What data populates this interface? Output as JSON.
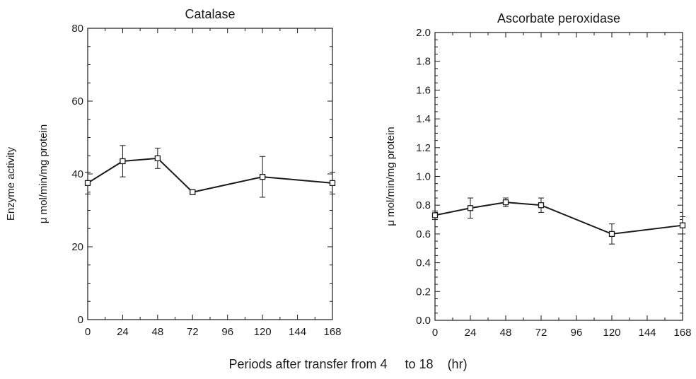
{
  "figure": {
    "shared_ylabel": "Enzyme activity",
    "xlabel": "Periods after transfer from 4     to 18    (hr)"
  },
  "chart_data": [
    {
      "type": "line",
      "title": "Catalase",
      "ylabel": "μ mol/min/mg protein",
      "xlabel": "",
      "xlim": [
        0,
        168
      ],
      "ylim": [
        0,
        80
      ],
      "xticks": [
        0,
        24,
        48,
        72,
        96,
        120,
        144,
        168
      ],
      "xtick_labels": [
        "0",
        "24",
        "48",
        "72",
        "96",
        "120",
        "144",
        "168"
      ],
      "yticks": [
        0,
        20,
        40,
        60,
        80
      ],
      "ytick_labels": [
        "0",
        "20",
        "40",
        "60",
        "80"
      ],
      "grid": false,
      "series": [
        {
          "x": [
            0,
            24,
            48,
            72,
            120,
            168
          ],
          "y": [
            37.5,
            43.5,
            44.3,
            35,
            39.2,
            37.5
          ],
          "err": [
            3,
            4.3,
            2.8,
            0,
            5.6,
            3
          ],
          "marker": "open-square",
          "color": "#1a1a1a"
        }
      ]
    },
    {
      "type": "line",
      "title": "Ascorbate peroxidase",
      "ylabel": "μ mol/min/mg protein",
      "xlabel": "",
      "xlim": [
        0,
        168
      ],
      "ylim": [
        0,
        2
      ],
      "xticks": [
        0,
        24,
        48,
        72,
        96,
        120,
        144,
        168
      ],
      "xtick_labels": [
        "0",
        "24",
        "48",
        "72",
        "96",
        "120",
        "144",
        "168"
      ],
      "yticks": [
        0,
        0.2,
        0.4,
        0.6,
        0.8,
        1.0,
        1.2,
        1.4,
        1.6,
        1.8,
        2.0
      ],
      "ytick_labels": [
        "0.0",
        "0.2",
        "0.4",
        "0.6",
        "0.8",
        "1.0",
        "1.2",
        "1.4",
        "1.6",
        "1.8",
        "2.0"
      ],
      "grid": false,
      "series": [
        {
          "x": [
            0,
            24,
            48,
            72,
            120,
            168
          ],
          "y": [
            0.73,
            0.78,
            0.82,
            0.8,
            0.6,
            0.66
          ],
          "err": [
            0.03,
            0.07,
            0.03,
            0.05,
            0.07,
            0.06
          ],
          "marker": "open-square",
          "color": "#1a1a1a"
        }
      ]
    }
  ]
}
